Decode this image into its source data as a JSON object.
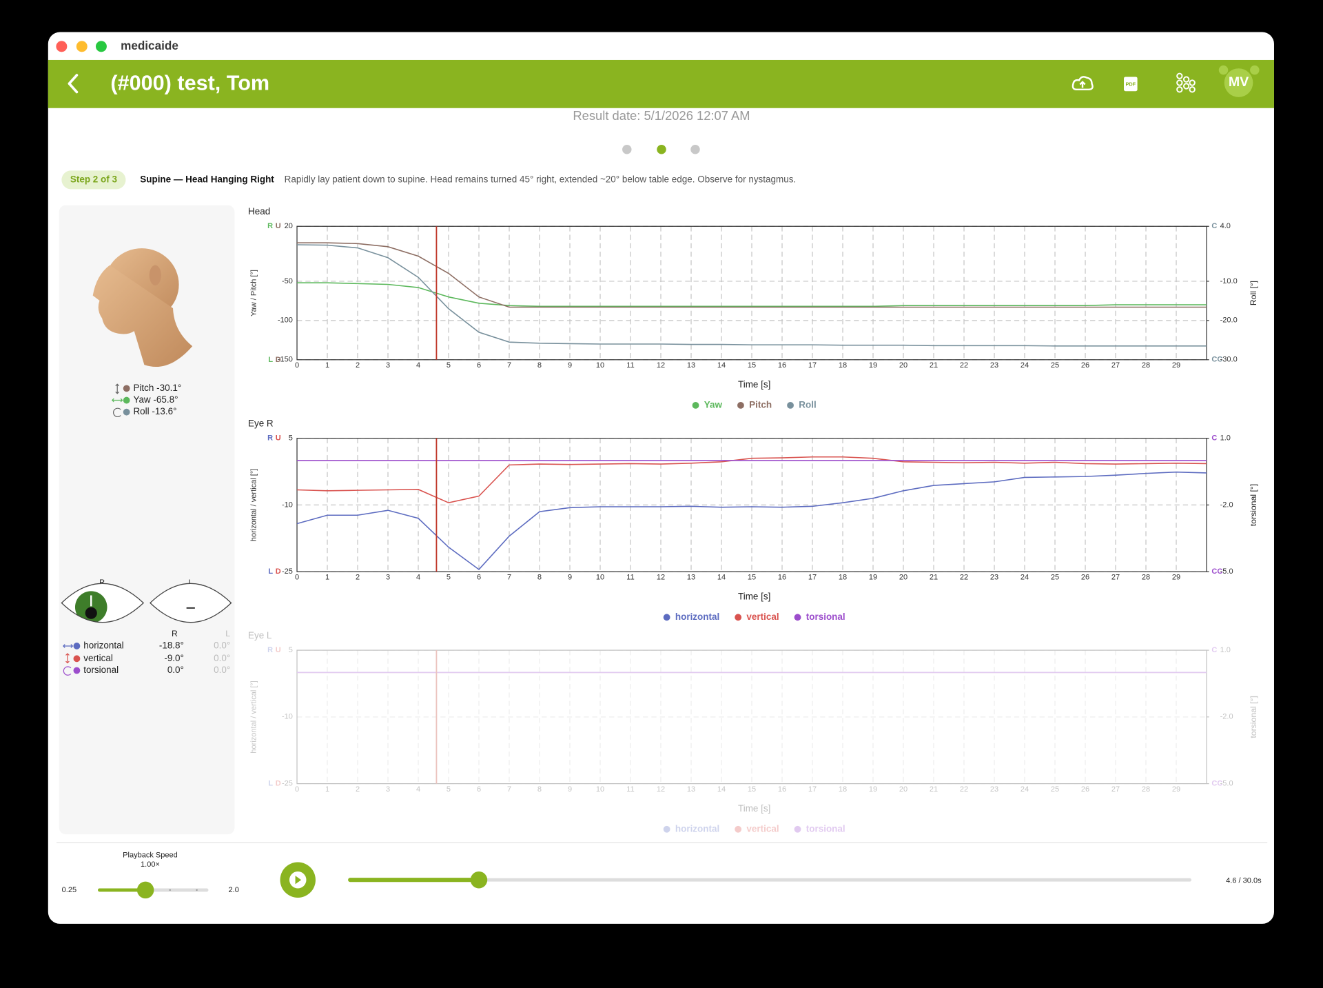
{
  "window": {
    "app_name": "medicaide"
  },
  "header": {
    "title": "(#000) test, Tom",
    "avatar": "MV"
  },
  "result_date": "Result date: 5/1/2026 12:07 AM",
  "step": {
    "badge": "Step 2 of 3",
    "name": "Supine — Head Hanging Right",
    "description": "Rapidly lay patient down to supine. Head remains turned 45° right, extended ~20° below table edge. Observe for nystagmus."
  },
  "head_panel": {
    "readouts": [
      "Pitch -30.1°",
      "Yaw -65.8°",
      "Roll -13.6°"
    ]
  },
  "eye_panel": {
    "eye_labels": [
      "R",
      "L"
    ],
    "columns": [
      "R",
      "L"
    ],
    "rows": [
      {
        "name": "horizontal",
        "r": "-18.8°",
        "l": "0.0°"
      },
      {
        "name": "vertical",
        "r": "-9.0°",
        "l": "0.0°"
      },
      {
        "name": "torsional",
        "r": "0.0°",
        "l": "0.0°"
      }
    ]
  },
  "playback": {
    "speed_title": "Playback Speed",
    "speed": {
      "value": 1,
      "label": "1.00×"
    },
    "speed_min": 0.25,
    "speed_max": {
      "value": 2,
      "label": "2.0"
    },
    "position": 4.6,
    "duration": 30,
    "time_label": "4.6 / 30.0s"
  },
  "chart_data": [
    {
      "type": "line",
      "title": "Head",
      "xlabel": "Time [s]",
      "ylabel": "Yaw / Pitch [°]",
      "y2label": "Roll [°]",
      "corner_labels": {
        "top_left": [
          "R",
          "U"
        ],
        "bottom_left": [
          "L",
          "D"
        ],
        "top_right": "C",
        "bottom_right": "CC"
      },
      "grid": true,
      "x": [
        0,
        1,
        2,
        3,
        4,
        5,
        6,
        7,
        8,
        9,
        10,
        11,
        12,
        13,
        14,
        15,
        16,
        17,
        18,
        19,
        20,
        21,
        22,
        23,
        24,
        25,
        26,
        27,
        28,
        29,
        30
      ],
      "xlim": [
        0,
        30
      ],
      "xticks": [
        0,
        1,
        2,
        3,
        4,
        5,
        6,
        7,
        8,
        9,
        10,
        11,
        12,
        13,
        14,
        15,
        16,
        17,
        18,
        19,
        20,
        21,
        22,
        23,
        24,
        25,
        26,
        27,
        28,
        29
      ],
      "ylim": [
        -150,
        20
      ],
      "yticks": [
        20,
        -50,
        -100,
        -150
      ],
      "y2lim": [
        -30,
        4
      ],
      "y2ticks": [
        {
          "value": 4,
          "label": "4.0"
        },
        {
          "value": -10,
          "label": "-10.0"
        },
        {
          "value": -20,
          "label": "-20.0"
        },
        {
          "value": -30,
          "label": "-30.0"
        }
      ],
      "series": [
        {
          "name": "Yaw",
          "color": "#5cb85c",
          "values": [
            -52,
            -52,
            -53,
            -54,
            -58,
            -70,
            -78,
            -81,
            -82,
            -82,
            -82,
            -82,
            -82,
            -82,
            -82,
            -82,
            -82,
            -82,
            -82,
            -82,
            -81,
            -81,
            -81,
            -81,
            -81,
            -81,
            -81,
            -80,
            -80,
            -80,
            -80
          ]
        },
        {
          "name": "Pitch",
          "color": "#8d6e63",
          "values": [
            -1,
            -1,
            -2,
            -6,
            -18,
            -40,
            -70,
            -83,
            -83,
            -83,
            -83,
            -83,
            -83,
            -83,
            -83,
            -83,
            -83,
            -83,
            -83,
            -83,
            -83,
            -83,
            -83,
            -83,
            -83,
            -83,
            -83,
            -83,
            -83,
            -83,
            -83
          ]
        },
        {
          "name": "Roll",
          "color": "#78909c",
          "axis": "y2",
          "values": [
            -0.7,
            -0.8,
            -1.5,
            -4,
            -9,
            -17,
            -23,
            -25.5,
            -25.8,
            -25.9,
            -26,
            -26,
            -26,
            -26.1,
            -26.1,
            -26.2,
            -26.2,
            -26.2,
            -26.3,
            -26.3,
            -26.3,
            -26.4,
            -26.4,
            -26.4,
            -26.4,
            -26.5,
            -26.5,
            -26.5,
            -26.5,
            -26.5,
            -26.5
          ]
        }
      ]
    },
    {
      "type": "line",
      "title": "Eye R",
      "xlabel": "Time [s]",
      "ylabel": "horizontal / vertical [°]",
      "y2label": "torsional [°]",
      "corner_labels": {
        "top_left": [
          "R",
          "U"
        ],
        "bottom_left": [
          "L",
          "D"
        ],
        "top_right": "C",
        "bottom_right": "CC"
      },
      "grid": true,
      "x": [
        0,
        1,
        2,
        3,
        4,
        5,
        6,
        7,
        8,
        9,
        10,
        11,
        12,
        13,
        14,
        15,
        16,
        17,
        18,
        19,
        20,
        21,
        22,
        23,
        24,
        25,
        26,
        27,
        28,
        29,
        30
      ],
      "xlim": [
        0,
        30
      ],
      "xticks": [
        0,
        1,
        2,
        3,
        4,
        5,
        6,
        7,
        8,
        9,
        10,
        11,
        12,
        13,
        14,
        15,
        16,
        17,
        18,
        19,
        20,
        21,
        22,
        23,
        24,
        25,
        26,
        27,
        28,
        29
      ],
      "ylim": [
        -25,
        5
      ],
      "yticks": [
        5,
        -10,
        -25
      ],
      "y2lim": [
        -5,
        1
      ],
      "y2ticks": [
        {
          "value": 1,
          "label": "1.0"
        },
        {
          "value": -2,
          "label": "-2.0"
        },
        {
          "value": -5,
          "label": "-5.0"
        }
      ],
      "series": [
        {
          "name": "horizontal",
          "color": "#5c6bc0",
          "values": [
            -14.2,
            -12.3,
            -12.3,
            -11.2,
            -13,
            -19.5,
            -24.5,
            -17,
            -11.5,
            -10.6,
            -10.4,
            -10.4,
            -10.4,
            -10.3,
            -10.5,
            -10.4,
            -10.5,
            -10.3,
            -9.5,
            -8.5,
            -6.8,
            -5.6,
            -5.2,
            -4.8,
            -3.8,
            -3.7,
            -3.6,
            -3.3,
            -2.9,
            -2.6,
            -2.8
          ]
        },
        {
          "name": "vertical",
          "color": "#d9534f",
          "values": [
            -6.6,
            -6.8,
            -6.7,
            -6.6,
            -6.5,
            -9.5,
            -8,
            -1,
            -0.8,
            -0.9,
            -0.8,
            -0.7,
            -0.8,
            -0.6,
            -0.3,
            0.5,
            0.6,
            0.8,
            0.8,
            0.5,
            -0.3,
            -0.4,
            -0.5,
            -0.4,
            -0.6,
            -0.4,
            -0.7,
            -0.8,
            -0.7,
            -0.6,
            -0.7
          ]
        },
        {
          "name": "torsional",
          "color": "#9c4dcc",
          "axis": "y2",
          "values": [
            0,
            0,
            0,
            0,
            0,
            0,
            0,
            0,
            0,
            0,
            0,
            0,
            0,
            0,
            0,
            0,
            0,
            0,
            0,
            0,
            0,
            0,
            0,
            0,
            0,
            0,
            0,
            0,
            0,
            0,
            0
          ]
        }
      ]
    },
    {
      "type": "line",
      "title": "Eye L",
      "xlabel": "Time [s]",
      "ylabel": "horizontal / vertical [°]",
      "y2label": "torsional [°]",
      "corner_labels": {
        "top_left": [
          "R",
          "U"
        ],
        "bottom_left": [
          "L",
          "D"
        ],
        "top_right": "C",
        "bottom_right": "CC"
      },
      "grid": true,
      "x": [
        0,
        30
      ],
      "xlim": [
        0,
        30
      ],
      "xticks": [
        0,
        1,
        2,
        3,
        4,
        5,
        6,
        7,
        8,
        9,
        10,
        11,
        12,
        13,
        14,
        15,
        16,
        17,
        18,
        19,
        20,
        21,
        22,
        23,
        24,
        25,
        26,
        27,
        28,
        29
      ],
      "ylim": [
        -25,
        5
      ],
      "yticks": [
        5,
        -10,
        -25
      ],
      "y2lim": [
        -5,
        1
      ],
      "y2ticks": [
        {
          "value": 1,
          "label": "1.0"
        },
        {
          "value": -2,
          "label": "-2.0"
        },
        {
          "value": -5,
          "label": "-5.0"
        }
      ],
      "series": [
        {
          "name": "horizontal",
          "color": "#5c6bc0",
          "values": [
            0,
            0
          ]
        },
        {
          "name": "vertical",
          "color": "#d9534f",
          "values": [
            0,
            0
          ]
        },
        {
          "name": "torsional",
          "color": "#9c4dcc",
          "axis": "y2",
          "values": [
            0,
            0
          ]
        }
      ]
    }
  ]
}
